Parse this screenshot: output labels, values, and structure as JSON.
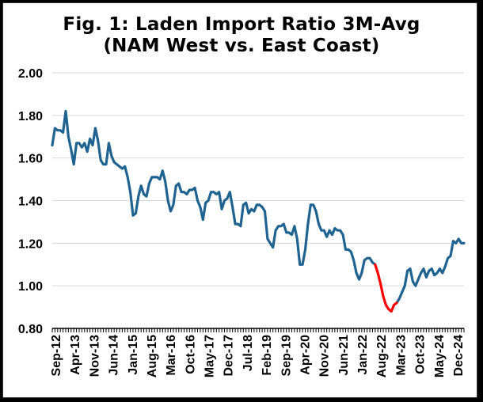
{
  "chart_data": {
    "type": "line",
    "title": "Fig. 1: Laden Import Ratio 3M-Avg",
    "subtitle": "(NAM West vs. East Coast)",
    "xlabel": "",
    "ylabel": "",
    "ylim": [
      0.8,
      2.0
    ],
    "yticks": [
      "0.80",
      "1.00",
      "1.20",
      "1.40",
      "1.60",
      "1.80",
      "2.00"
    ],
    "xticks": [
      "Sep-12",
      "Apr-13",
      "Nov-13",
      "Jun-14",
      "Jan-15",
      "Aug-15",
      "Mar-16",
      "Oct-16",
      "May-17",
      "Dec-17",
      "Jul-18",
      "Feb-19",
      "Sep-19",
      "Apr-20",
      "Nov-20",
      "Jun-21",
      "Jan-22",
      "Aug-22",
      "Mar-23",
      "Oct-23",
      "May-24",
      "Dec-24"
    ],
    "grid": true,
    "legend": "none",
    "colors": {
      "line": "#1f6391",
      "highlight": "#ff0000"
    },
    "highlight_range": [
      120,
      128
    ],
    "series": [
      {
        "values": [
          1.66,
          1.74,
          1.73,
          1.73,
          1.72,
          1.82,
          1.7,
          1.64,
          1.57,
          1.67,
          1.67,
          1.65,
          1.67,
          1.63,
          1.69,
          1.66,
          1.74,
          1.68,
          1.59,
          1.57,
          1.57,
          1.67,
          1.61,
          1.58,
          1.57,
          1.56,
          1.55,
          1.56,
          1.51,
          1.44,
          1.33,
          1.34,
          1.42,
          1.47,
          1.43,
          1.42,
          1.48,
          1.51,
          1.51,
          1.51,
          1.5,
          1.54,
          1.49,
          1.4,
          1.35,
          1.38,
          1.47,
          1.48,
          1.44,
          1.44,
          1.43,
          1.45,
          1.45,
          1.46,
          1.4,
          1.37,
          1.31,
          1.39,
          1.4,
          1.44,
          1.44,
          1.43,
          1.44,
          1.36,
          1.4,
          1.41,
          1.44,
          1.37,
          1.29,
          1.29,
          1.28,
          1.38,
          1.39,
          1.34,
          1.36,
          1.35,
          1.38,
          1.38,
          1.37,
          1.35,
          1.22,
          1.2,
          1.18,
          1.26,
          1.28,
          1.28,
          1.29,
          1.25,
          1.25,
          1.24,
          1.28,
          1.22,
          1.1,
          1.1,
          1.17,
          1.29,
          1.38,
          1.38,
          1.35,
          1.29,
          1.26,
          1.26,
          1.23,
          1.26,
          1.24,
          1.27,
          1.26,
          1.26,
          1.24,
          1.17,
          1.17,
          1.16,
          1.12,
          1.06,
          1.03,
          1.06,
          1.12,
          1.13,
          1.13,
          1.11,
          1.1,
          1.06,
          1.01,
          0.95,
          0.91,
          0.89,
          0.88,
          0.91,
          0.92,
          0.94,
          0.97,
          1.0,
          1.07,
          1.08,
          1.02,
          1.0,
          1.03,
          1.06,
          1.08,
          1.04,
          1.07,
          1.08,
          1.05,
          1.06,
          1.08,
          1.06,
          1.09,
          1.13,
          1.14,
          1.21,
          1.2,
          1.22,
          1.2,
          1.2
        ]
      }
    ]
  }
}
